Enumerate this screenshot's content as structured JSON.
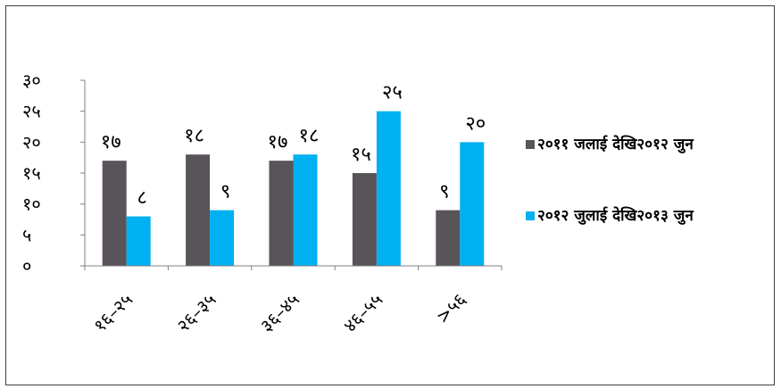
{
  "chart_data": {
    "type": "bar",
    "categories": [
      "१६–२५",
      "२६–३५",
      "३६–४५",
      "४६–५५",
      ">५६"
    ],
    "series": [
      {
        "name": "२०११ जलाई देखि२०१२ जुन",
        "values": [
          17,
          18,
          17,
          15,
          9
        ],
        "labels": [
          "१७",
          "१८",
          "१७",
          "१५",
          "९"
        ],
        "color": "#595459"
      },
      {
        "name": "२०१२ जुलाई देखि२०१३ जुन",
        "values": [
          8,
          9,
          18,
          25,
          20
        ],
        "labels": [
          "८",
          "९",
          "१८",
          "२५",
          "२०"
        ],
        "color": "#00B0F0"
      }
    ],
    "y_ticks": [
      {
        "value": 0,
        "label": "०"
      },
      {
        "value": 5,
        "label": "५"
      },
      {
        "value": 10,
        "label": "१०"
      },
      {
        "value": 15,
        "label": "१५"
      },
      {
        "value": 20,
        "label": "२०"
      },
      {
        "value": 25,
        "label": "२५"
      },
      {
        "value": 30,
        "label": "३०"
      }
    ],
    "ylim": [
      0,
      30
    ],
    "grid": false,
    "legend_position": "right",
    "title": "",
    "xlabel": "",
    "ylabel": ""
  }
}
